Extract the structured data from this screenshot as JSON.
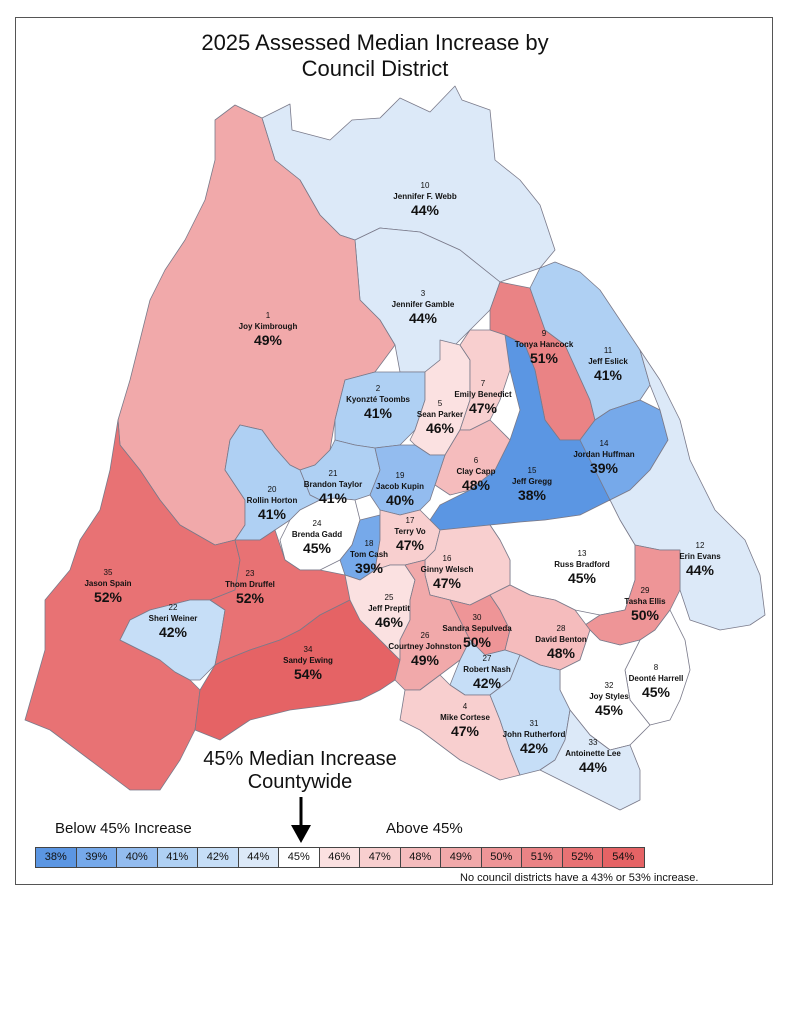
{
  "title_line1": "2025 Assessed Median Increase by",
  "title_line2": "Council District",
  "colors": {
    "38%": "#5b96e3",
    "39%": "#76a9ea",
    "40%": "#93bcef",
    "41%": "#afd0f3",
    "42%": "#c6def7",
    "44%": "#dce9f8",
    "45%": "#ffffff",
    "46%": "#fbe1e1",
    "47%": "#f8cfcf",
    "48%": "#f5bcbd",
    "49%": "#f1a9aa",
    "50%": "#ee9597",
    "51%": "#ea8385",
    "52%": "#e87274",
    "54%": "#e56365"
  },
  "districts": [
    {
      "id": "d10",
      "num": "10",
      "name": "Jennifer F. Webb",
      "pct": "44%"
    },
    {
      "id": "d3",
      "num": "3",
      "name": "Jennifer Gamble",
      "pct": "44%"
    },
    {
      "id": "d1",
      "num": "1",
      "name": "Joy Kimbrough",
      "pct": "49%"
    },
    {
      "id": "d9",
      "num": "9",
      "name": "Tonya Hancock",
      "pct": "51%"
    },
    {
      "id": "d11",
      "num": "11",
      "name": "Jeff Eslick",
      "pct": "41%"
    },
    {
      "id": "d2",
      "num": "2",
      "name": "Kyonzté Toombs",
      "pct": "41%"
    },
    {
      "id": "d7",
      "num": "7",
      "name": "Emily Benedict",
      "pct": "47%"
    },
    {
      "id": "d5",
      "num": "5",
      "name": "Sean Parker",
      "pct": "46%"
    },
    {
      "id": "d14",
      "num": "14",
      "name": "Jordan Huffman",
      "pct": "39%"
    },
    {
      "id": "d6",
      "num": "6",
      "name": "Clay Capp",
      "pct": "48%"
    },
    {
      "id": "d15",
      "num": "15",
      "name": "Jeff Gregg",
      "pct": "38%"
    },
    {
      "id": "d21",
      "num": "21",
      "name": "Brandon Taylor",
      "pct": "41%"
    },
    {
      "id": "d19",
      "num": "19",
      "name": "Jacob Kupin",
      "pct": "40%"
    },
    {
      "id": "d20",
      "num": "20",
      "name": "Rollin Horton",
      "pct": "41%"
    },
    {
      "id": "d24",
      "num": "24",
      "name": "Brenda Gadd",
      "pct": "45%"
    },
    {
      "id": "d17",
      "num": "17",
      "name": "Terry Vo",
      "pct": "47%"
    },
    {
      "id": "d18",
      "num": "18",
      "name": "Tom Cash",
      "pct": "39%"
    },
    {
      "id": "d12",
      "num": "12",
      "name": "Erin Evans",
      "pct": "44%"
    },
    {
      "id": "d13",
      "num": "13",
      "name": "Russ Bradford",
      "pct": "45%"
    },
    {
      "id": "d16",
      "num": "16",
      "name": "Ginny Welsch",
      "pct": "47%"
    },
    {
      "id": "d35",
      "num": "35",
      "name": "Jason Spain",
      "pct": "52%"
    },
    {
      "id": "d23",
      "num": "23",
      "name": "Thom Druffel",
      "pct": "52%"
    },
    {
      "id": "d22",
      "num": "22",
      "name": "Sheri Weiner",
      "pct": "42%"
    },
    {
      "id": "d25",
      "num": "25",
      "name": "Jeff Preptit",
      "pct": "46%"
    },
    {
      "id": "d29",
      "num": "29",
      "name": "Tasha Ellis",
      "pct": "50%"
    },
    {
      "id": "d30",
      "num": "30",
      "name": "Sandra Sepulveda",
      "pct": "50%"
    },
    {
      "id": "d26",
      "num": "26",
      "name": "Courtney Johnston",
      "pct": "49%"
    },
    {
      "id": "d28",
      "num": "28",
      "name": "David Benton",
      "pct": "48%"
    },
    {
      "id": "d34",
      "num": "34",
      "name": "Sandy Ewing",
      "pct": "54%"
    },
    {
      "id": "d27",
      "num": "27",
      "name": "Robert Nash",
      "pct": "42%"
    },
    {
      "id": "d8",
      "num": "8",
      "name": "Deonté Harrell",
      "pct": "45%"
    },
    {
      "id": "d32",
      "num": "32",
      "name": "Joy Styles",
      "pct": "45%"
    },
    {
      "id": "d4",
      "num": "4",
      "name": "Mike Cortese",
      "pct": "47%"
    },
    {
      "id": "d31",
      "num": "31",
      "name": "John Rutherford",
      "pct": "42%"
    },
    {
      "id": "d33",
      "num": "33",
      "name": "Antoinette Lee",
      "pct": "44%"
    }
  ],
  "countywide_line1": "45% Median Increase",
  "countywide_line2": "Countywide",
  "below_label": "Below 45% Increase",
  "above_label": "Above 45%",
  "legend": [
    "38%",
    "39%",
    "40%",
    "41%",
    "42%",
    "44%",
    "45%",
    "46%",
    "47%",
    "48%",
    "49%",
    "50%",
    "51%",
    "52%",
    "54%"
  ],
  "note": "No council districts have a 43% or 53% increase."
}
